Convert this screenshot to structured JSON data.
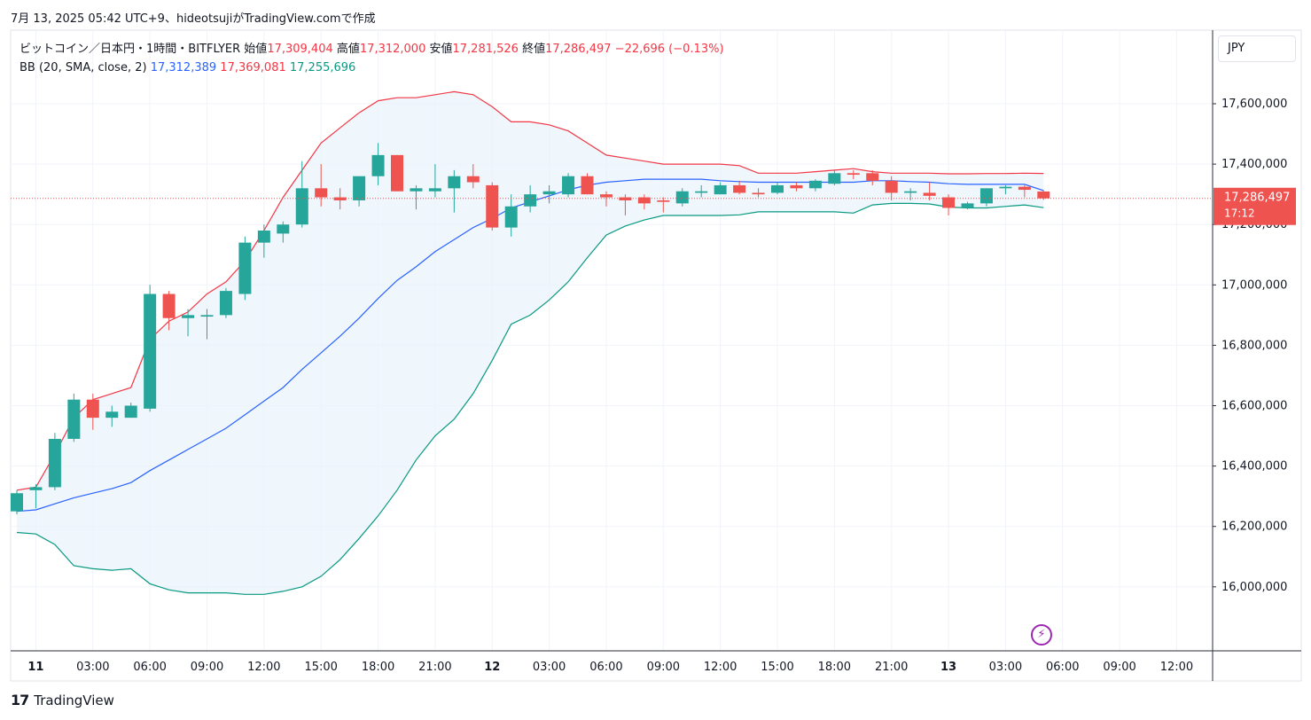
{
  "caption": "7月 13, 2025 05:42 UTC+9、hideotsujiがTradingView.comで作成",
  "legend": {
    "symbol": "ビットコイン／日本円・1時間・BITFLYER",
    "open_label": "始値",
    "open": "17,309,404",
    "high_label": "高値",
    "high": "17,312,000",
    "low_label": "安値",
    "low": "17,281,526",
    "close_label": "終値",
    "close": "17,286,497",
    "change": "−22,696 (−0.13%)",
    "bb_label": "BB (20, SMA, close, 2)",
    "bb_basis": "17,312,389",
    "bb_upper": "17,369,081",
    "bb_lower": "17,255,696"
  },
  "currency_button": "JPY",
  "price_tag": {
    "price": "17,286,497",
    "countdown": "17:12",
    "value": 17286497
  },
  "footer_brand": "TradingView",
  "footer_mark": "17",
  "bolt_icon": "⚡",
  "colors": {
    "up": "#26a69a",
    "down": "#ef5350",
    "basis": "#2962ff",
    "upper": "#f23645",
    "lower": "#089981",
    "band_fill": "#eaf3fb"
  },
  "chart_data": {
    "type": "candlestick",
    "interval": "1h",
    "ylim": [
      15800000,
      17800000
    ],
    "y_ticks": [
      16000000,
      16200000,
      16400000,
      16600000,
      16800000,
      17000000,
      17200000,
      17400000,
      17600000
    ],
    "y_tick_labels": [
      "16,000,000",
      "16,200,000",
      "16,400,000",
      "16,600,000",
      "16,800,000",
      "17,000,000",
      "17,200,000",
      "17,400,000",
      "17,600,000"
    ],
    "x_ticks": [
      {
        "i": 1,
        "label": "11",
        "bold": true
      },
      {
        "i": 4,
        "label": "03:00"
      },
      {
        "i": 7,
        "label": "06:00"
      },
      {
        "i": 10,
        "label": "09:00"
      },
      {
        "i": 13,
        "label": "12:00"
      },
      {
        "i": 16,
        "label": "15:00"
      },
      {
        "i": 19,
        "label": "18:00"
      },
      {
        "i": 22,
        "label": "21:00"
      },
      {
        "i": 25,
        "label": "12",
        "bold": true
      },
      {
        "i": 28,
        "label": "03:00"
      },
      {
        "i": 31,
        "label": "06:00"
      },
      {
        "i": 34,
        "label": "09:00"
      },
      {
        "i": 37,
        "label": "12:00"
      },
      {
        "i": 40,
        "label": "15:00"
      },
      {
        "i": 43,
        "label": "18:00"
      },
      {
        "i": 46,
        "label": "21:00"
      },
      {
        "i": 49,
        "label": "13",
        "bold": true
      },
      {
        "i": 52,
        "label": "03:00"
      },
      {
        "i": 55,
        "label": "06:00"
      },
      {
        "i": 58,
        "label": "09:00"
      },
      {
        "i": 61,
        "label": "12:00"
      }
    ],
    "candles": [
      [
        16250000,
        16320000,
        16240000,
        16310000
      ],
      [
        16320000,
        16340000,
        16260000,
        16330000
      ],
      [
        16330000,
        16510000,
        16320000,
        16490000
      ],
      [
        16490000,
        16640000,
        16480000,
        16620000
      ],
      [
        16620000,
        16640000,
        16520000,
        16560000
      ],
      [
        16560000,
        16600000,
        16530000,
        16580000
      ],
      [
        16560000,
        16610000,
        16560000,
        16600000
      ],
      [
        16590000,
        17000000,
        16580000,
        16970000
      ],
      [
        16970000,
        16980000,
        16850000,
        16890000
      ],
      [
        16890000,
        16920000,
        16830000,
        16900000
      ],
      [
        16895000,
        16920000,
        16820000,
        16900000
      ],
      [
        16900000,
        16990000,
        16890000,
        16980000
      ],
      [
        16970000,
        17160000,
        16950000,
        17140000
      ],
      [
        17140000,
        17200000,
        17090000,
        17180000
      ],
      [
        17170000,
        17210000,
        17140000,
        17200000
      ],
      [
        17200000,
        17410000,
        17190000,
        17320000
      ],
      [
        17320000,
        17400000,
        17260000,
        17290000
      ],
      [
        17290000,
        17320000,
        17250000,
        17280000
      ],
      [
        17280000,
        17360000,
        17260000,
        17360000
      ],
      [
        17360000,
        17470000,
        17330000,
        17430000
      ],
      [
        17430000,
        17430000,
        17310000,
        17310000
      ],
      [
        17310000,
        17330000,
        17250000,
        17320000
      ],
      [
        17310000,
        17400000,
        17290000,
        17320000
      ],
      [
        17320000,
        17380000,
        17240000,
        17360000
      ],
      [
        17360000,
        17400000,
        17320000,
        17340000
      ],
      [
        17330000,
        17340000,
        17180000,
        17190000
      ],
      [
        17190000,
        17300000,
        17160000,
        17260000
      ],
      [
        17260000,
        17330000,
        17240000,
        17300000
      ],
      [
        17300000,
        17330000,
        17270000,
        17310000
      ],
      [
        17300000,
        17370000,
        17290000,
        17360000
      ],
      [
        17360000,
        17370000,
        17300000,
        17300000
      ],
      [
        17300000,
        17310000,
        17260000,
        17290000
      ],
      [
        17290000,
        17300000,
        17230000,
        17280000
      ],
      [
        17290000,
        17300000,
        17250000,
        17270000
      ],
      [
        17280000,
        17290000,
        17240000,
        17275000
      ],
      [
        17270000,
        17320000,
        17260000,
        17310000
      ],
      [
        17305000,
        17330000,
        17290000,
        17310000
      ],
      [
        17300000,
        17340000,
        17300000,
        17330000
      ],
      [
        17330000,
        17345000,
        17300000,
        17305000
      ],
      [
        17305000,
        17320000,
        17290000,
        17300000
      ],
      [
        17305000,
        17340000,
        17300000,
        17330000
      ],
      [
        17330000,
        17340000,
        17310000,
        17320000
      ],
      [
        17320000,
        17350000,
        17310000,
        17345000
      ],
      [
        17335000,
        17380000,
        17330000,
        17370000
      ],
      [
        17370000,
        17380000,
        17350000,
        17365000
      ],
      [
        17370000,
        17380000,
        17330000,
        17345000
      ],
      [
        17345000,
        17360000,
        17280000,
        17305000
      ],
      [
        17305000,
        17320000,
        17280000,
        17310000
      ],
      [
        17305000,
        17340000,
        17280000,
        17295000
      ],
      [
        17290000,
        17300000,
        17230000,
        17255000
      ],
      [
        17255000,
        17275000,
        17250000,
        17270000
      ],
      [
        17270000,
        17320000,
        17260000,
        17320000
      ],
      [
        17320000,
        17330000,
        17300000,
        17325000
      ],
      [
        17325000,
        17330000,
        17290000,
        17315000
      ],
      [
        17309404,
        17312000,
        17281526,
        17286497
      ]
    ],
    "bb_upper": [
      16320000,
      16330000,
      16440000,
      16560000,
      16620000,
      16640000,
      16660000,
      16820000,
      16880000,
      16910000,
      16970000,
      17010000,
      17080000,
      17180000,
      17290000,
      17380000,
      17470000,
      17520000,
      17570000,
      17610000,
      17620000,
      17620000,
      17630000,
      17640000,
      17630000,
      17590000,
      17540000,
      17540000,
      17530000,
      17510000,
      17470000,
      17430000,
      17420000,
      17410000,
      17400000,
      17400000,
      17400000,
      17400000,
      17395000,
      17370000,
      17370000,
      17370000,
      17375000,
      17380000,
      17385000,
      17375000,
      17370000,
      17370000,
      17370000,
      17368000,
      17368000,
      17369000,
      17369000,
      17370000,
      17369081
    ],
    "bb_basis": [
      16250000,
      16255000,
      16275000,
      16295000,
      16310000,
      16325000,
      16345000,
      16385000,
      16420000,
      16455000,
      16490000,
      16525000,
      16570000,
      16615000,
      16660000,
      16720000,
      16775000,
      16830000,
      16890000,
      16955000,
      17015000,
      17060000,
      17110000,
      17150000,
      17190000,
      17220000,
      17255000,
      17275000,
      17295000,
      17315000,
      17330000,
      17340000,
      17345000,
      17350000,
      17350000,
      17350000,
      17350000,
      17345000,
      17342000,
      17340000,
      17340000,
      17340000,
      17340000,
      17340000,
      17340000,
      17345000,
      17345000,
      17342000,
      17340000,
      17335000,
      17333000,
      17333000,
      17333000,
      17333000,
      17312389
    ],
    "bb_lower": [
      16180000,
      16175000,
      16140000,
      16070000,
      16060000,
      16055000,
      16060000,
      16010000,
      15990000,
      15980000,
      15980000,
      15980000,
      15975000,
      15975000,
      15985000,
      16000000,
      16035000,
      16090000,
      16160000,
      16235000,
      16320000,
      16420000,
      16500000,
      16555000,
      16640000,
      16750000,
      16870000,
      16900000,
      16950000,
      17010000,
      17090000,
      17165000,
      17195000,
      17215000,
      17230000,
      17230000,
      17230000,
      17230000,
      17232000,
      17242000,
      17242000,
      17242000,
      17242000,
      17242000,
      17238000,
      17265000,
      17270000,
      17270000,
      17268000,
      17258000,
      17255000,
      17255000,
      17260000,
      17265000,
      17255696
    ]
  }
}
